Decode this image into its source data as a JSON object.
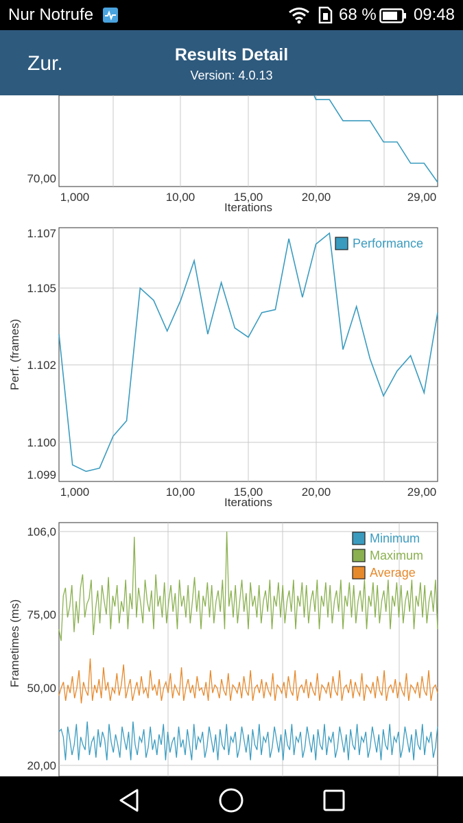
{
  "status_bar": {
    "carrier": "Nur Notrufe",
    "battery": "68 %",
    "time": "09:48",
    "icons": [
      "health-icon",
      "wifi-icon",
      "sim-icon",
      "battery-icon"
    ]
  },
  "header": {
    "back_label": "Zur.",
    "title": "Results Detail",
    "version": "Version: 4.0.13",
    "background": "#2e5a7d"
  },
  "nav_bar": {
    "icons": [
      "back-triangle-icon",
      "home-circle-icon",
      "recents-square-icon"
    ]
  },
  "chart_data": [
    {
      "type": "line",
      "partially_visible": true,
      "xlabel": "Iterations",
      "x_tick_labels": [
        "1,000",
        "10,00",
        "15,00",
        "20,00",
        "29,00"
      ],
      "y_tick_labels": [
        "70,00"
      ],
      "series": [
        {
          "color": "#3a9bbf",
          "x": [
            19.8,
            20.0,
            21.0,
            22.0,
            24.0,
            25.0,
            26.0,
            27.0,
            28.0,
            29.0
          ],
          "y": [
            74.4,
            74.1,
            74.1,
            73.1,
            73.1,
            72.1,
            72.1,
            71.1,
            71.1,
            70.2
          ]
        }
      ],
      "xlim": [
        1,
        29
      ],
      "ylim": [
        70,
        74.3
      ]
    },
    {
      "type": "line",
      "xlabel": "Iterations",
      "ylabel": "Perf. (frames)",
      "x_tick_labels": [
        "1,000",
        "10,00",
        "15,00",
        "20,00",
        "29,00"
      ],
      "y_tick_labels": [
        "1.107",
        "1.105",
        "1.102",
        "1.100",
        "1.099"
      ],
      "legend": {
        "position": "top-right",
        "entries": [
          "Performance"
        ]
      },
      "series": [
        {
          "name": "Performance",
          "color": "#3a9bbf",
          "x": [
            1,
            2,
            3,
            4,
            5,
            6,
            7,
            8,
            9,
            10,
            11,
            12,
            13,
            14,
            15,
            16,
            17,
            18,
            19,
            20,
            21,
            22,
            23,
            24,
            25,
            26,
            27,
            28,
            29
          ],
          "y": [
            1.1035,
            1.0993,
            1.0991,
            1.0992,
            1.1002,
            1.1007,
            1.105,
            1.1046,
            1.1036,
            1.1046,
            1.106,
            1.1035,
            1.1052,
            1.1037,
            1.1034,
            1.1042,
            1.1043,
            1.1068,
            1.1047,
            1.1066,
            1.107,
            1.103,
            1.1044,
            1.1027,
            1.1015,
            1.1023,
            1.1028,
            1.1016,
            1.1042
          ]
        }
      ],
      "xlim": [
        1,
        29
      ],
      "ylim": [
        1.099,
        1.107
      ]
    },
    {
      "type": "line",
      "partially_visible": true,
      "ylabel": "Frametimes (ms)",
      "y_tick_labels": [
        "106,0",
        "75,00",
        "50,00",
        "20,00"
      ],
      "legend": {
        "position": "top-right",
        "entries": [
          "Minimum",
          "Maximum",
          "Average"
        ]
      },
      "series": [
        {
          "name": "Minimum",
          "color": "#3a9bbf",
          "y": [
            33,
            34,
            31,
            22,
            35,
            30,
            24,
            28,
            36,
            22,
            31,
            28,
            26,
            37,
            24,
            29,
            31,
            23,
            34,
            27,
            33,
            30,
            22,
            36,
            29,
            25,
            32,
            28,
            23,
            35,
            30,
            26,
            33,
            22,
            37,
            28,
            24,
            31,
            29,
            34,
            23,
            27,
            35,
            26,
            30,
            24,
            32,
            28,
            36,
            22,
            33,
            25,
            29,
            31,
            23,
            35,
            27,
            30,
            24,
            34,
            28,
            22,
            36,
            26,
            31,
            29,
            33,
            23,
            27,
            35,
            30,
            25,
            32,
            22,
            34,
            28,
            26,
            36,
            24,
            31,
            29,
            33,
            23,
            27,
            35,
            30,
            25,
            32,
            22,
            34,
            28,
            26,
            36,
            24,
            31,
            29,
            33,
            23,
            27,
            35,
            30,
            25,
            32,
            22,
            34,
            28,
            26,
            36,
            24,
            31,
            29,
            33,
            23,
            27,
            35,
            30,
            25,
            32,
            22,
            34,
            28,
            26,
            36,
            24,
            31,
            29,
            33,
            23,
            27,
            35,
            30,
            25,
            32,
            22,
            34,
            28,
            26,
            36,
            24,
            31,
            29,
            33,
            23,
            27,
            35,
            30,
            25,
            32,
            22,
            34,
            28,
            26,
            36,
            24,
            31,
            29,
            33,
            23,
            27,
            35,
            30,
            25,
            32,
            22,
            34,
            28,
            26,
            36,
            24,
            31,
            29,
            33,
            23,
            27,
            35
          ]
        },
        {
          "name": "Maximum",
          "color": "#8ab04f",
          "y": [
            70,
            66,
            82,
            85,
            74,
            78,
            86,
            69,
            80,
            72,
            85,
            90,
            74,
            79,
            81,
            88,
            68,
            77,
            84,
            72,
            86,
            80,
            75,
            89,
            70,
            82,
            78,
            86,
            72,
            80,
            76,
            88,
            70,
            83,
            77,
            104,
            74,
            85,
            79,
            72,
            88,
            80,
            76,
            84,
            70,
            90,
            78,
            82,
            74,
            87,
            72,
            80,
            86,
            76,
            83,
            70,
            88,
            78,
            82,
            74,
            86,
            72,
            80,
            89,
            76,
            84,
            70,
            82,
            78,
            87,
            74,
            86,
            72,
            80,
            84,
            76,
            88,
            70,
            106,
            78,
            84,
            74,
            86,
            72,
            80,
            88,
            76,
            83,
            70,
            87,
            78,
            82,
            74,
            86,
            72,
            80,
            84,
            76,
            88,
            70,
            82,
            78,
            87,
            74,
            86,
            72,
            80,
            84,
            76,
            88,
            70,
            82,
            78,
            87,
            74,
            86,
            72,
            80,
            84,
            76,
            88,
            70,
            82,
            78,
            87,
            74,
            86,
            72,
            80,
            84,
            76,
            88,
            70,
            82,
            78,
            87,
            74,
            86,
            72,
            80,
            84,
            76,
            88,
            70,
            82,
            78,
            87,
            74,
            86,
            72,
            80,
            84,
            76,
            88,
            70,
            82,
            78,
            87,
            74,
            86,
            72,
            80,
            84,
            76,
            88,
            70,
            82,
            78,
            87,
            74,
            86,
            72,
            80,
            84,
            76,
            88,
            70
          ]
        },
        {
          "name": "Average",
          "color": "#e6892c",
          "y": [
            47,
            50,
            52,
            45,
            51,
            48,
            54,
            46,
            50,
            56,
            44,
            52,
            49,
            47,
            60,
            45,
            51,
            48,
            53,
            46,
            57,
            49,
            52,
            45,
            50,
            48,
            55,
            47,
            51,
            58,
            46,
            50,
            53,
            45,
            49,
            52,
            47,
            54,
            48,
            50,
            46,
            56,
            49,
            51,
            47,
            53,
            45,
            50,
            52,
            48,
            55,
            46,
            51,
            49,
            47,
            57,
            45,
            50,
            53,
            48,
            51,
            46,
            54,
            49,
            50,
            47,
            52,
            45,
            56,
            48,
            51,
            50,
            46,
            53,
            49,
            47,
            55,
            45,
            51,
            50,
            48,
            52,
            46,
            54,
            49,
            47,
            56,
            45,
            50,
            51,
            48,
            53,
            46,
            52,
            49,
            47,
            55,
            45,
            51,
            50,
            48,
            52,
            46,
            54,
            49,
            47,
            56,
            45,
            50,
            51,
            48,
            53,
            46,
            52,
            49,
            47,
            55,
            45,
            51,
            50,
            48,
            52,
            46,
            54,
            49,
            47,
            56,
            45,
            50,
            51,
            48,
            53,
            46,
            52,
            49,
            47,
            55,
            45,
            51,
            50,
            48,
            52,
            46,
            54,
            49,
            47,
            56,
            45,
            50,
            51,
            48,
            53,
            46,
            52,
            49,
            47,
            55,
            45,
            51,
            50,
            48,
            52,
            46,
            54,
            49,
            47,
            56,
            45,
            50,
            51,
            48
          ]
        }
      ],
      "ylim": [
        20,
        106
      ]
    }
  ]
}
